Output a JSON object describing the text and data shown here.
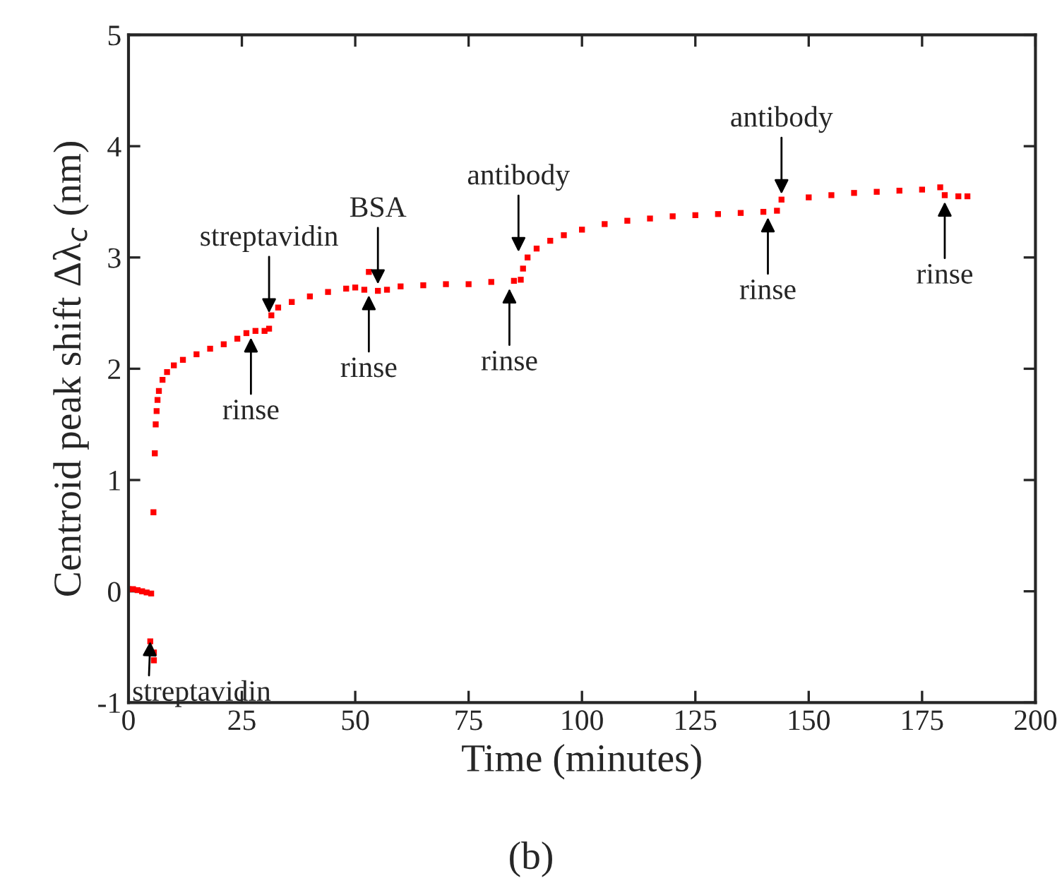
{
  "chart_data": {
    "type": "scatter",
    "xlabel": "Time (minutes)",
    "ylabel": "Centroid peak shift Δλ$_{c}$ (nm)",
    "xlim": [
      0,
      200
    ],
    "xticks": [
      0,
      25,
      50,
      75,
      100,
      125,
      150,
      175,
      200
    ],
    "ylim": [
      -1,
      5
    ],
    "yticks": [
      -1,
      0,
      1,
      2,
      3,
      4,
      5
    ],
    "grid": false,
    "marker": "square",
    "series": [
      {
        "color": "#ff0000",
        "x": [
          0,
          1,
          2,
          3,
          4,
          5,
          4.8,
          5.6,
          5.6,
          5.5,
          5.8,
          6.0,
          6.2,
          6.4,
          6.7,
          7.5,
          8.5,
          10,
          12,
          15,
          18,
          21,
          24,
          26,
          28,
          30,
          31,
          31.5,
          33,
          36,
          40,
          44,
          48,
          50,
          52,
          53,
          55,
          57,
          60,
          65,
          70,
          75,
          80,
          85,
          86.5,
          87,
          88,
          90,
          93,
          96,
          100,
          105,
          110,
          115,
          120,
          125,
          130,
          135,
          140,
          143,
          144,
          150,
          155,
          160,
          165,
          170,
          175,
          179,
          180,
          183,
          185
        ],
        "values": [
          0.02,
          0.02,
          0.01,
          0.0,
          -0.01,
          -0.02,
          -0.45,
          -0.55,
          -0.62,
          0.71,
          1.24,
          1.5,
          1.62,
          1.72,
          1.8,
          1.9,
          1.97,
          2.03,
          2.08,
          2.13,
          2.18,
          2.22,
          2.27,
          2.32,
          2.34,
          2.34,
          2.36,
          2.48,
          2.55,
          2.6,
          2.65,
          2.69,
          2.72,
          2.73,
          2.71,
          2.87,
          2.7,
          2.71,
          2.74,
          2.75,
          2.76,
          2.76,
          2.78,
          2.79,
          2.8,
          2.9,
          3.0,
          3.08,
          3.15,
          3.2,
          3.25,
          3.3,
          3.33,
          3.35,
          3.37,
          3.38,
          3.39,
          3.4,
          3.41,
          3.42,
          3.52,
          3.54,
          3.56,
          3.58,
          3.59,
          3.6,
          3.61,
          3.63,
          3.56,
          3.55,
          3.55
        ]
      }
    ],
    "annotations": [
      {
        "text": "streptavidin",
        "x": 4.8,
        "y": -0.45
      },
      {
        "text": "streptavidin",
        "x": 31,
        "y": 2.5
      },
      {
        "text": "rinse",
        "x": 27,
        "y": 2.28
      },
      {
        "text": "BSA",
        "x": 55,
        "y": 2.76
      },
      {
        "text": "rinse",
        "x": 53,
        "y": 2.66
      },
      {
        "text": "antibody",
        "x": 86,
        "y": 3.05
      },
      {
        "text": "rinse",
        "x": 84,
        "y": 2.72
      },
      {
        "text": "rinse",
        "x": 141,
        "y": 3.36
      },
      {
        "text": "antibody",
        "x": 144,
        "y": 3.57
      },
      {
        "text": "rinse",
        "x": 180,
        "y": 3.5
      },
      "(b)"
    ]
  }
}
